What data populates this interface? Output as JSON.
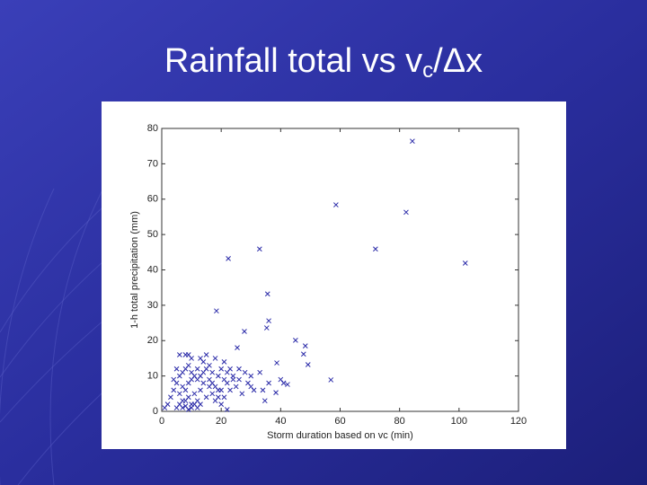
{
  "chart_data": {
    "type": "scatter",
    "title": [
      "Rainfall total vs v",
      "c",
      "/Δx"
    ],
    "xlabel": "Storm duration based on vc (min)",
    "ylabel": "1-h total precipitation (mm)",
    "xlim": [
      0,
      120
    ],
    "xticks": [
      0,
      20,
      40,
      60,
      80,
      100,
      120
    ],
    "ylim": [
      0,
      80
    ],
    "yticks": [
      0,
      10,
      20,
      30,
      40,
      50,
      60,
      70,
      80
    ],
    "color": "#2a2aa8",
    "x": [
      84.3,
      58.6,
      82.2,
      32.9,
      71.9,
      22.4,
      102.1,
      35.6,
      18.4,
      36.0,
      35.3,
      27.8,
      45.0,
      25.4,
      48.3,
      47.7,
      49.2,
      38.7,
      56.9,
      42.3,
      38.4,
      34.7,
      5,
      6,
      7,
      8,
      9,
      10,
      6,
      7,
      8,
      9,
      10,
      11,
      12,
      13,
      14,
      15,
      16,
      17,
      18,
      19,
      20,
      21,
      22,
      23,
      24,
      25,
      26,
      27,
      28,
      29,
      30,
      31,
      12,
      14,
      15,
      13,
      16,
      17,
      18,
      20,
      21,
      19,
      8,
      9,
      10,
      6,
      5,
      4,
      3,
      2,
      1,
      4,
      5,
      6,
      7,
      8,
      9,
      10,
      11,
      12,
      13,
      14,
      15,
      16,
      17,
      18,
      19,
      20,
      21,
      22,
      23,
      24,
      26,
      7,
      8,
      9,
      10,
      11,
      12,
      13,
      22,
      30,
      33,
      34,
      36,
      40,
      41
    ],
    "y": [
      76.4,
      58.4,
      56.3,
      45.9,
      45.9,
      43.2,
      41.9,
      33.2,
      28.4,
      25.6,
      23.6,
      22.6,
      20.1,
      18.0,
      18.5,
      16.2,
      13.2,
      13.7,
      8.9,
      7.6,
      5.3,
      3.0,
      1,
      2,
      3,
      1.5,
      4,
      2,
      5,
      7,
      6,
      8,
      9,
      5,
      3,
      6,
      8,
      4,
      7,
      5,
      3,
      6,
      2,
      4,
      8,
      6,
      10,
      7,
      9,
      5,
      11,
      8,
      10,
      6,
      12,
      14,
      16,
      15,
      13,
      11,
      15,
      12,
      14,
      10,
      16,
      16,
      15,
      16,
      12,
      9,
      4,
      2,
      1,
      6,
      8,
      10,
      11,
      12,
      13,
      11,
      10,
      9,
      10,
      11,
      12,
      9,
      8,
      7,
      4,
      6,
      9,
      11,
      12,
      9,
      12,
      1,
      3,
      0.5,
      1,
      2,
      1,
      2,
      0.5,
      7,
      11,
      6,
      8,
      9,
      8
    ]
  }
}
